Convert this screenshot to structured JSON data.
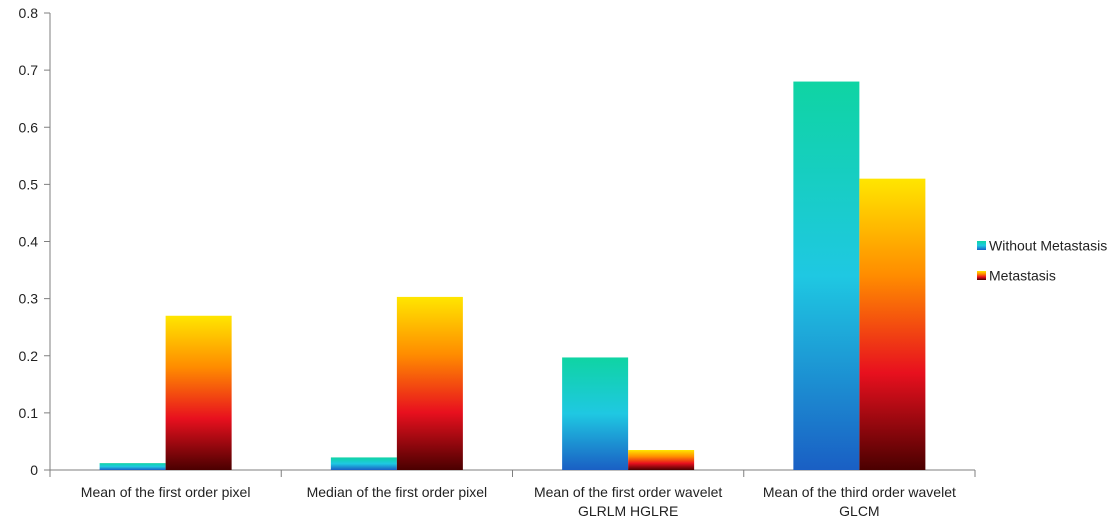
{
  "chart_data": {
    "type": "bar",
    "categories": [
      [
        "Mean of the first order pixel"
      ],
      [
        "Median of the first order pixel"
      ],
      [
        "Mean of the first order wavelet",
        "GLRLM HGLRE"
      ],
      [
        "Mean of the third order wavelet",
        "GLCM"
      ]
    ],
    "series": [
      {
        "name": "Without Metastasis",
        "values": [
          0.012,
          0.022,
          0.197,
          0.68
        ],
        "gradient": [
          "#1a5fc4",
          "#1fc8e2",
          "#0fd4a3"
        ]
      },
      {
        "name": "Metastasis",
        "values": [
          0.27,
          0.303,
          0.035,
          0.51
        ],
        "gradient": [
          "#4a0000",
          "#e8101e",
          "#ff8c00",
          "#ffe600"
        ]
      }
    ],
    "yticks": [
      "0",
      "0.1",
      "0.2",
      "0.3",
      "0.4",
      "0.5",
      "0.6",
      "0.7",
      "0.8"
    ],
    "ylim": [
      0,
      0.8
    ],
    "grid": false,
    "legend_position": "right",
    "title": "",
    "xlabel": "",
    "ylabel": ""
  }
}
